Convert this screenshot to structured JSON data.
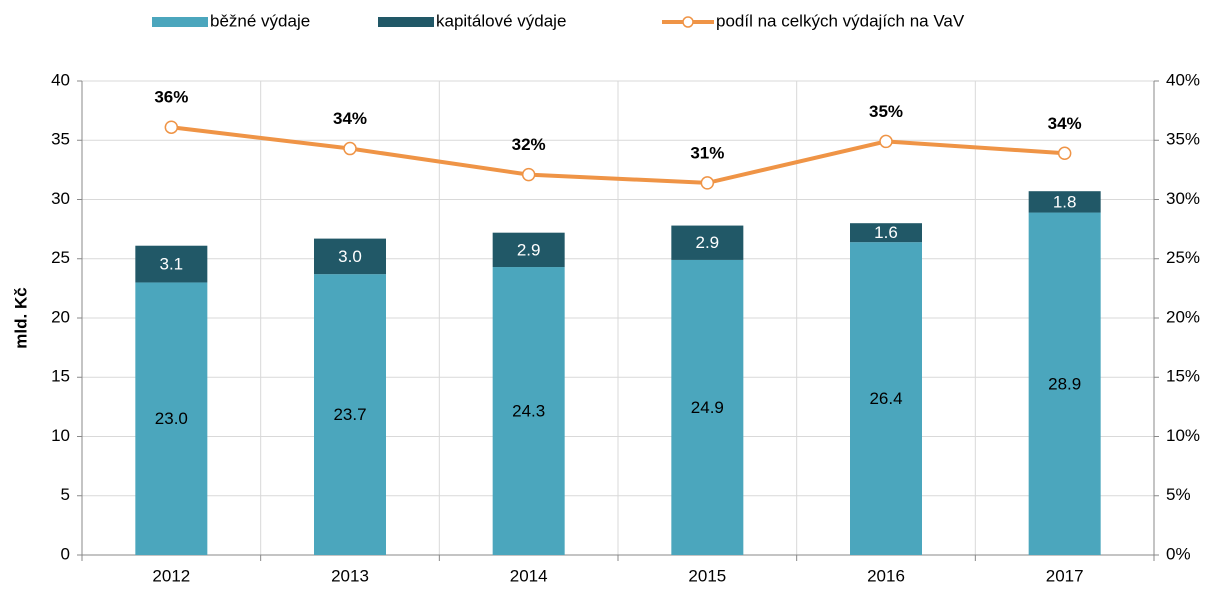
{
  "chart_data": {
    "type": "bar",
    "categories": [
      "2012",
      "2013",
      "2014",
      "2015",
      "2016",
      "2017"
    ],
    "y_label": "mld. Kč",
    "ylim": [
      0,
      40
    ],
    "yticks": [
      0,
      5,
      10,
      15,
      20,
      25,
      30,
      35,
      40
    ],
    "y2lim": [
      0,
      40
    ],
    "y2ticks": [
      {
        "value": 0,
        "label": "0%"
      },
      {
        "value": 5,
        "label": "5%"
      },
      {
        "value": 10,
        "label": "10%"
      },
      {
        "value": 15,
        "label": "15%"
      },
      {
        "value": 20,
        "label": "20%"
      },
      {
        "value": 25,
        "label": "25%"
      },
      {
        "value": 30,
        "label": "30%"
      },
      {
        "value": 35,
        "label": "35%"
      },
      {
        "value": 40,
        "label": "40%"
      }
    ],
    "grid": true,
    "legend": "top",
    "stacked": true,
    "series": [
      {
        "name": "běžné výdaje",
        "color": "#4ba6bd",
        "values": [
          23.0,
          23.7,
          24.3,
          24.9,
          26.4,
          28.9
        ],
        "value_labels": [
          "23.0",
          "23.7",
          "24.3",
          "24.9",
          "26.4",
          "28.9"
        ]
      },
      {
        "name": "kapitálové výdaje",
        "color": "#215867",
        "values": [
          3.1,
          3.0,
          2.9,
          2.9,
          1.6,
          1.8
        ],
        "value_labels": [
          "3.1",
          "3.0",
          "2.9",
          "2.9",
          "1.6",
          "1.8"
        ]
      },
      {
        "name": "podíl na celkých výdajích na VaV",
        "color": "#ef9446",
        "type": "line",
        "axis": "y2",
        "values": [
          36.1,
          34.3,
          32.1,
          31.4,
          34.9,
          33.9
        ],
        "value_labels": [
          "36%",
          "34%",
          "32%",
          "31%",
          "35%",
          "34%"
        ]
      }
    ]
  }
}
